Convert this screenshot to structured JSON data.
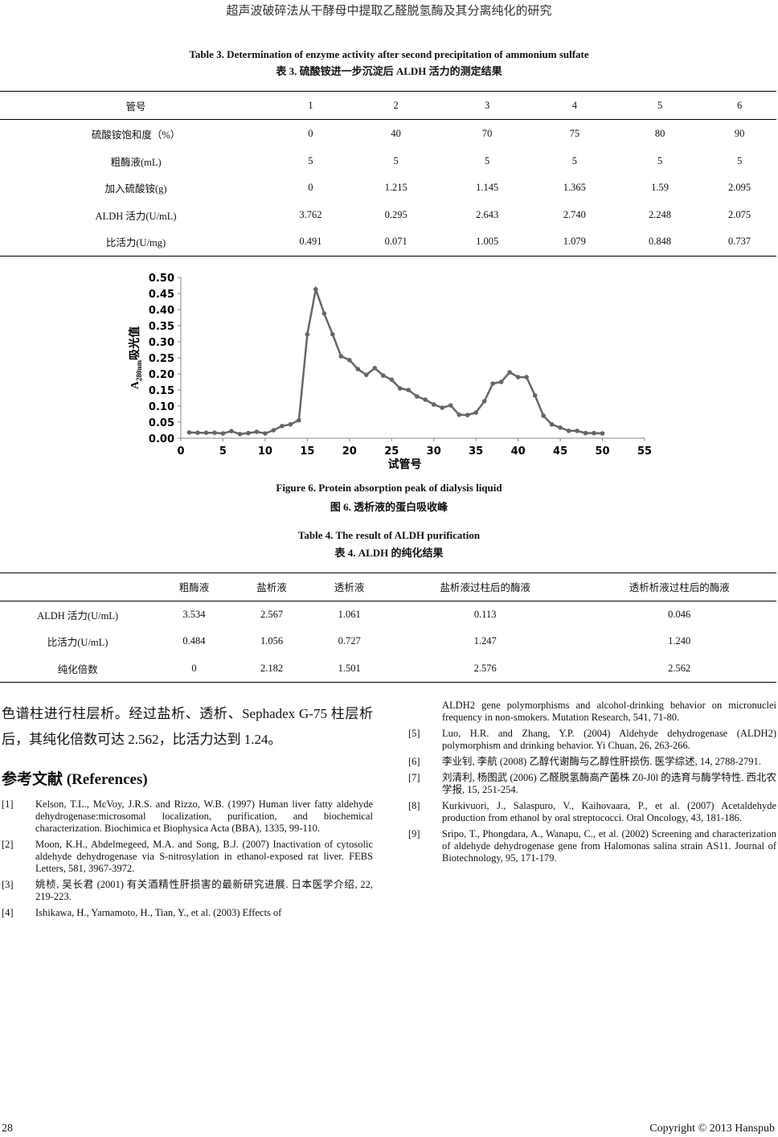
{
  "header": "超声波破碎法从干酵母中提取乙醛脱氢酶及其分离纯化的研究",
  "table3": {
    "title_en": "Table 3. Determination of enzyme activity after second precipitation of ammonium sulfate",
    "title_zh": "表 3. 硫酸铵进一步沉淀后 ALDH 活力的测定结果",
    "rows": [
      [
        "管号",
        "1",
        "2",
        "3",
        "4",
        "5",
        "6"
      ],
      [
        "硫酸铵饱和度（%）",
        "0",
        "40",
        "70",
        "75",
        "80",
        "90"
      ],
      [
        "粗酶液(mL)",
        "5",
        "5",
        "5",
        "5",
        "5",
        "5"
      ],
      [
        "加入硫酸铵(g)",
        "0",
        "1.215",
        "1.145",
        "1.365",
        "1.59",
        "2.095"
      ],
      [
        "ALDH 活力(U/mL)",
        "3.762",
        "0.295",
        "2.643",
        "2.740",
        "2.248",
        "2.075"
      ],
      [
        "比活力(U/mg)",
        "0.491",
        "0.071",
        "1.005",
        "1.079",
        "0.848",
        "0.737"
      ]
    ]
  },
  "chart_data": {
    "type": "line",
    "xlabel": "试管号",
    "ylabel_main": "A",
    "ylabel_sub": "280nm",
    "ylabel_rest": "吸光值",
    "xlim": [
      0,
      55
    ],
    "ylim": [
      0,
      0.5
    ],
    "xticks": [
      0,
      5,
      10,
      15,
      20,
      25,
      30,
      35,
      40,
      45,
      50,
      55
    ],
    "yticks": [
      "0.00",
      "0.05",
      "0.10",
      "0.15",
      "0.20",
      "0.25",
      "0.30",
      "0.35",
      "0.40",
      "0.45",
      "0.50"
    ],
    "color": "#666666",
    "x": [
      1,
      2,
      3,
      4,
      5,
      6,
      7,
      8,
      9,
      10,
      11,
      12,
      13,
      14,
      15,
      16,
      17,
      18,
      19,
      20,
      21,
      22,
      23,
      24,
      25,
      26,
      27,
      28,
      29,
      30,
      31,
      32,
      33,
      34,
      35,
      36,
      37,
      38,
      39,
      40,
      41,
      42,
      43,
      44,
      45,
      46,
      47,
      48,
      49,
      50
    ],
    "y": [
      0.018,
      0.017,
      0.017,
      0.017,
      0.015,
      0.022,
      0.013,
      0.016,
      0.02,
      0.015,
      0.025,
      0.038,
      0.043,
      0.056,
      0.323,
      0.463,
      0.388,
      0.323,
      0.255,
      0.243,
      0.215,
      0.197,
      0.218,
      0.195,
      0.182,
      0.155,
      0.15,
      0.13,
      0.12,
      0.105,
      0.095,
      0.102,
      0.073,
      0.072,
      0.08,
      0.115,
      0.17,
      0.175,
      0.205,
      0.19,
      0.19,
      0.133,
      0.07,
      0.043,
      0.033,
      0.023,
      0.023,
      0.016,
      0.016,
      0.015
    ]
  },
  "figure6": {
    "caption_en": "Figure 6. Protein absorption peak of dialysis liquid",
    "caption_zh": "图 6.  透析液的蛋白吸收峰"
  },
  "table4": {
    "title_en": "Table 4. The result of ALDH purification",
    "title_zh": "表 4. ALDH 的纯化结果",
    "rows": [
      [
        "",
        "粗酶液",
        "盐析液",
        "透析液",
        "盐析液过柱后的酶液",
        "透析析液过柱后的酶液"
      ],
      [
        "ALDH 活力(U/mL)",
        "3.534",
        "2.567",
        "1.061",
        "0.113",
        "0.046"
      ],
      [
        "比活力(U/mL)",
        "0.484",
        "1.056",
        "0.727",
        "1.247",
        "1.240"
      ],
      [
        "纯化倍数",
        "0",
        "2.182",
        "1.501",
        "2.576",
        "2.562"
      ]
    ]
  },
  "body_text": "色谱柱进行柱层析。经过盐析、透析、Sephadex G-75 柱层析后，其纯化倍数可达 2.562，比活力达到 1.24。",
  "references_heading": "参考文献  (References)",
  "references": [
    {
      "n": "[1]",
      "text": "Kelson, T.L., McVoy, J.R.S. and Rizzo, W.B. (1997) Human liver fatty aldehyde dehydrogenase:microsomal localization, purification, and biochemical characterization. Biochimica et Biophysica Acta (BBA), 1335, 99-110."
    },
    {
      "n": "[2]",
      "text": "Moon, K.H., Abdelmegeed, M.A. and Song, B.J. (2007) Inactivation of cytosolic aldehyde dehydrogenase via S-nitrosylation in ethanol-exposed rat liver. FEBS Letters, 581, 3967-3972."
    },
    {
      "n": "[3]",
      "text": "姚桢, 吴长君 (2001) 有关酒精性肝损害的最新研究进展. 日本医学介绍, 22, 219-223."
    },
    {
      "n": "[4]",
      "text": "Ishikawa, H., Yarnamoto, H., Tian, Y., et al. (2003) Effects of"
    },
    {
      "n": "",
      "text": "ALDH2 gene polymorphisms and alcohol-drinking behavior on micronuclei frequency in non-smokers. Mutation Research, 541, 71-80."
    },
    {
      "n": "[5]",
      "text": "Luo, H.R. and Zhang, Y.P. (2004) Aldehyde dehydrogenase (ALDH2) polymorphism and drinking behavior. Yi Chuan, 26, 263-266."
    },
    {
      "n": "[6]",
      "text": "李业钊, 李航 (2008) 乙醇代谢酶与乙醇性肝损伤. 医学综述, 14, 2788-2791."
    },
    {
      "n": "[7]",
      "text": "刘清利, 杨图武 (2006) 乙醛脱氢酶高产菌株 Z0-J0l 的选育与酶学特性. 西北农学报, 15, 251-254."
    },
    {
      "n": "[8]",
      "text": "Kurkivuori, J., Salaspuro, V., Kaihovaara, P., et al. (2007) Acetaldehyde production from ethanol by oral streptococci. Oral Oncology, 43, 181-186."
    },
    {
      "n": "[9]",
      "text": "Sripo, T., Phongdara, A., Wanapu, C., et al. (2002) Screening and characterization of aldehyde dehydrogenase gene from Halomonas salina strain AS11. Journal of Biotechnology, 95, 171-179."
    }
  ],
  "footer": {
    "page": "28",
    "copyright": "Copyright © 2013 Hanspub"
  }
}
